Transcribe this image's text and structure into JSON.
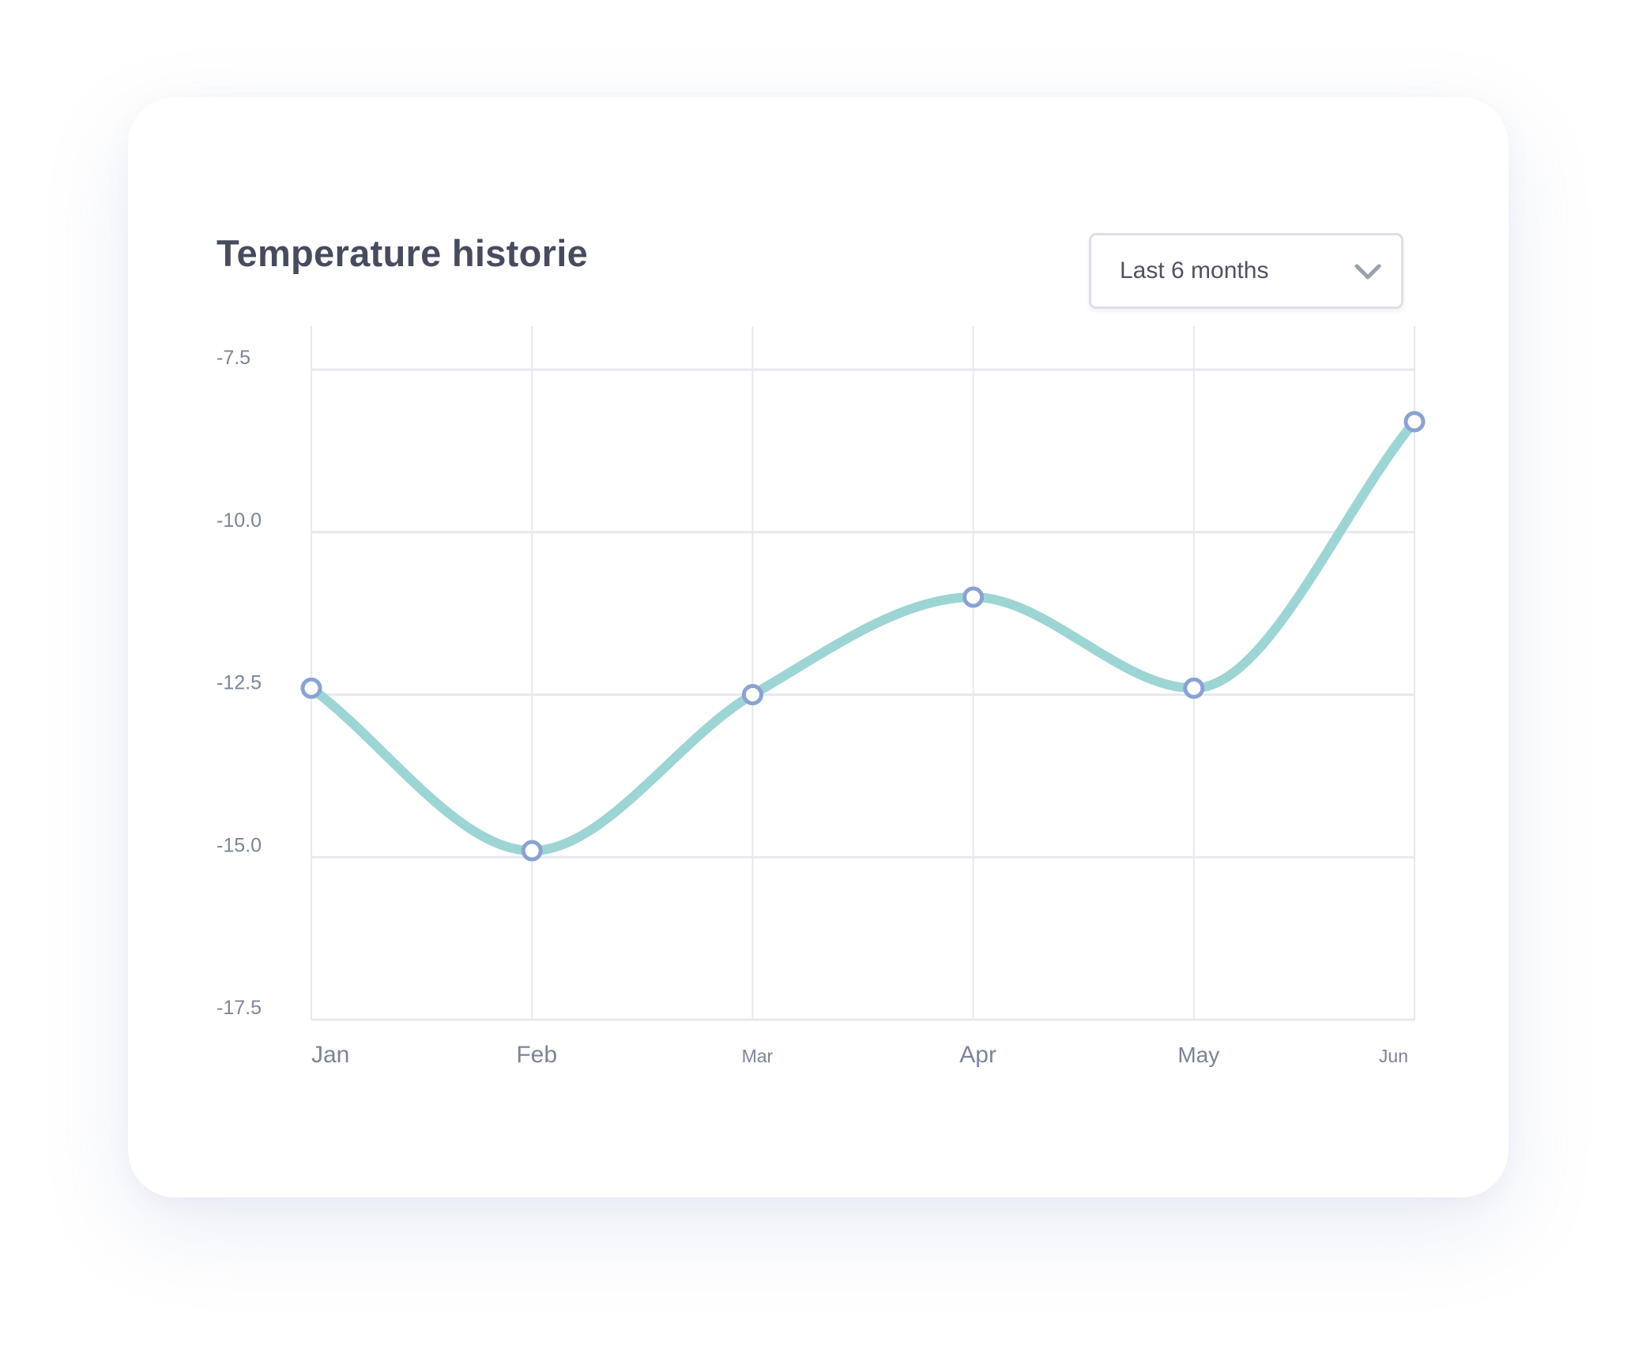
{
  "card": {
    "title": "Temperature historie"
  },
  "range_select": {
    "value": "Last 6 months",
    "icon": "chevron-down-icon"
  },
  "colors": {
    "line": "#9dd5d4",
    "marker_stroke": "#8aa2d3",
    "marker_fill": "#ffffff",
    "grid": "#e7e9ef",
    "axis_text": "#7c8498",
    "title_text": "#474b5e"
  },
  "chart_data": {
    "type": "line",
    "title": "Temperature historie",
    "xlabel": "",
    "ylabel": "",
    "categories": [
      "Jan",
      "Feb",
      "Mar",
      "Apr",
      "May",
      "Jun"
    ],
    "series": [
      {
        "values": [
          -12.4,
          -14.9,
          -12.5,
          -11.0,
          -12.4,
          -8.3
        ]
      }
    ],
    "ylim": [
      -17.5,
      -7.5
    ],
    "y_ticks": [
      "-7.5",
      "-10.0",
      "-12.5",
      "-15.0",
      "-17.5"
    ],
    "y_tick_values": [
      -7.5,
      -10.0,
      -12.5,
      -15.0,
      -17.5
    ],
    "grid": true,
    "legend": "none",
    "smooth": true,
    "markers": true
  }
}
